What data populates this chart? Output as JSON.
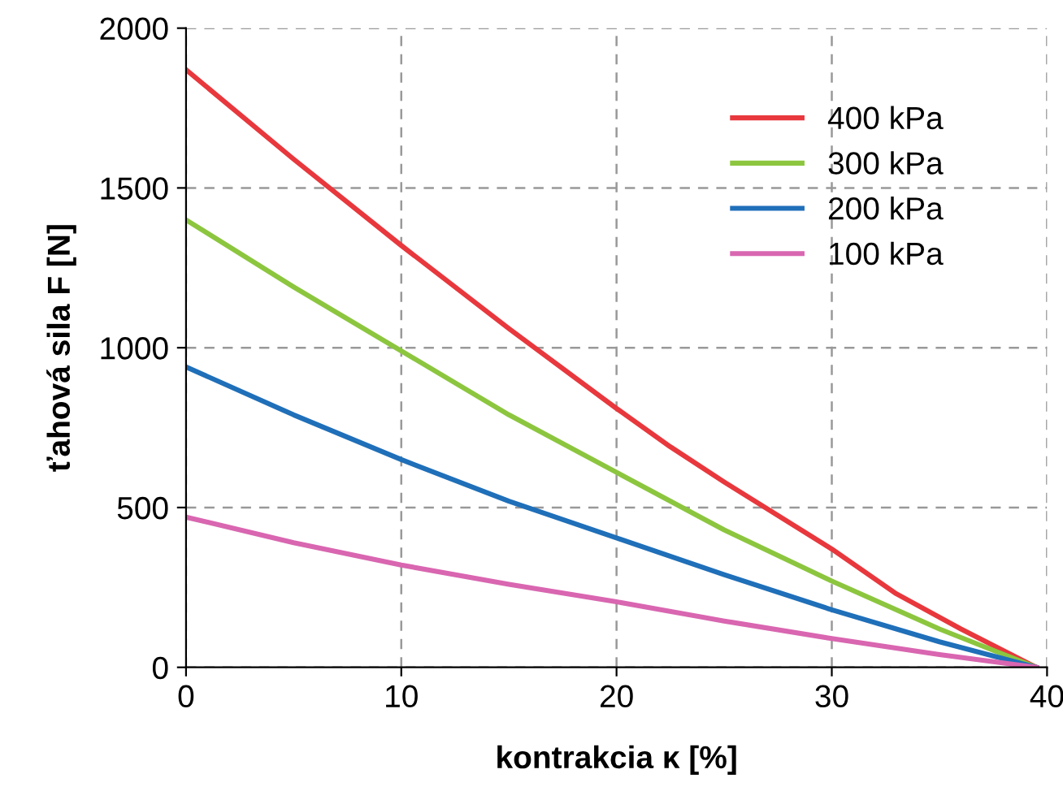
{
  "chart_data": {
    "type": "line",
    "xlabel": "kontrakcia κ [%]",
    "ylabel": "ťahová sila F [N]",
    "xlim": [
      0,
      40
    ],
    "xticks": [
      0,
      10,
      20,
      30,
      40
    ],
    "ylim": [
      0,
      2000
    ],
    "yticks": [
      0,
      500,
      1000,
      1500,
      2000
    ],
    "grid": true,
    "legend": "top right",
    "marker": "none",
    "line_style": "solid",
    "series": [
      {
        "name": "400 kPa",
        "color": "#e8383d",
        "x": [
          0,
          5,
          10,
          15,
          20,
          22.5,
          25,
          30,
          33,
          36,
          39.5
        ],
        "values": [
          1870,
          1590,
          1320,
          1060,
          810,
          690,
          580,
          370,
          230,
          120,
          0
        ]
      },
      {
        "name": "300 kPa",
        "color": "#8cc63f",
        "x": [
          0,
          5,
          10,
          15,
          20,
          25,
          30,
          35,
          39.5
        ],
        "values": [
          1400,
          1190,
          990,
          790,
          610,
          430,
          270,
          120,
          0
        ]
      },
      {
        "name": "200 kPa",
        "color": "#1f6fb9",
        "x": [
          0,
          5,
          10,
          15,
          20,
          25,
          30,
          35,
          39.5
        ],
        "values": [
          940,
          790,
          650,
          520,
          405,
          290,
          180,
          80,
          0
        ]
      },
      {
        "name": "100 kPa",
        "color": "#d966b0",
        "x": [
          0,
          5,
          10,
          15,
          20,
          25,
          30,
          35,
          39.5
        ],
        "values": [
          470,
          390,
          320,
          260,
          205,
          145,
          90,
          40,
          0
        ]
      }
    ]
  }
}
